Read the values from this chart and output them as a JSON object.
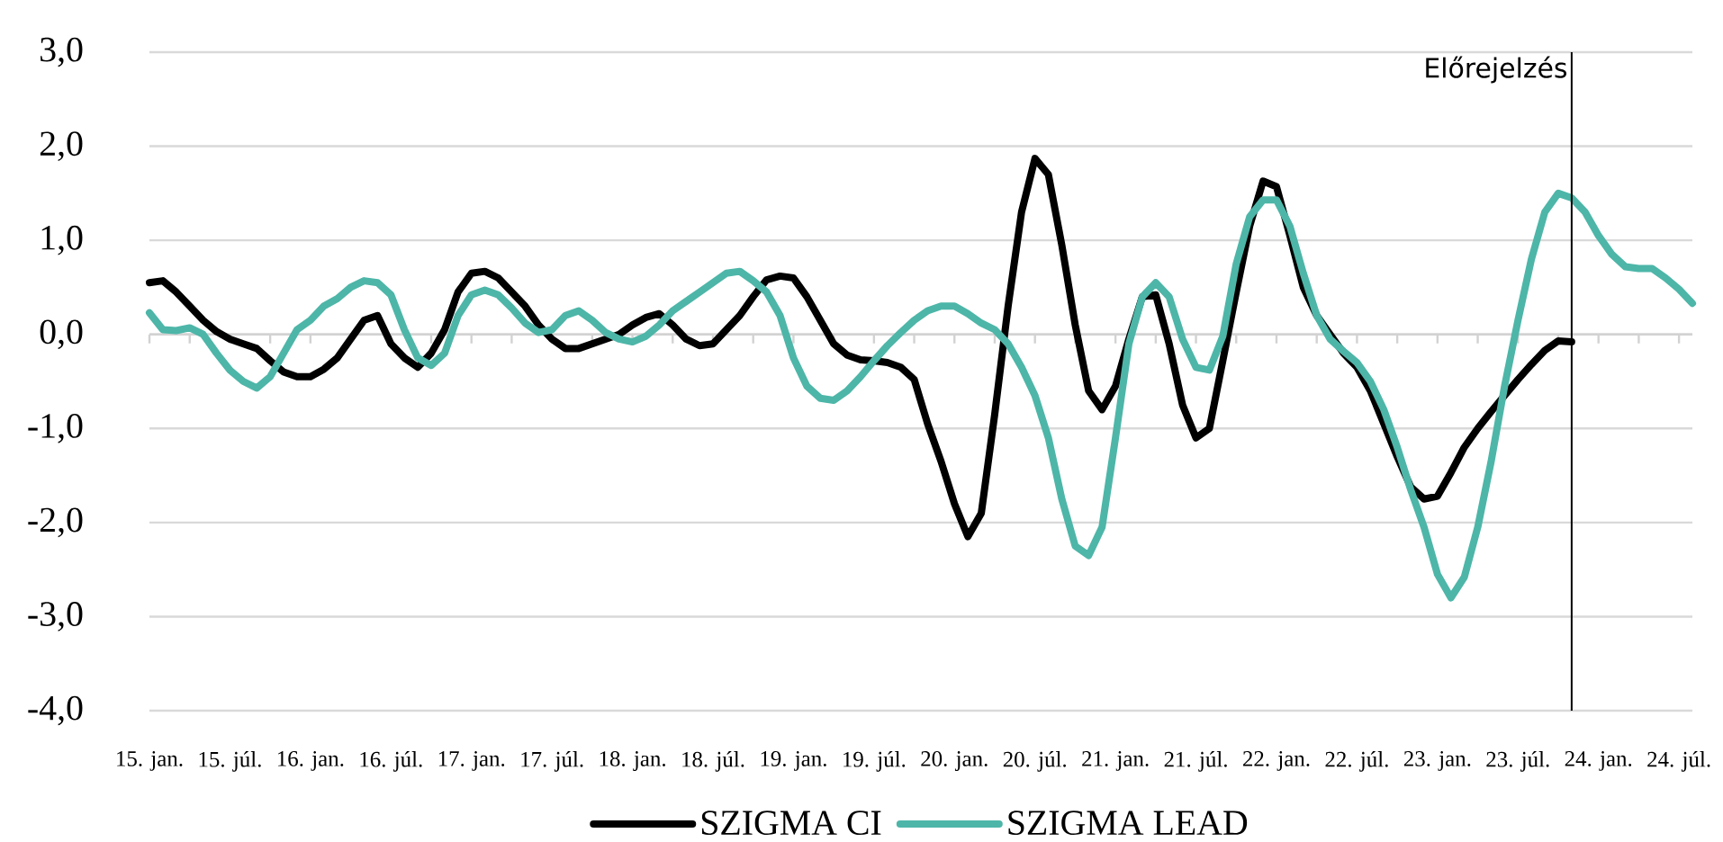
{
  "chart_data": {
    "type": "line",
    "x": [
      "2015-01",
      "2015-02",
      "2015-03",
      "2015-04",
      "2015-05",
      "2015-06",
      "2015-07",
      "2015-08",
      "2015-09",
      "2015-10",
      "2015-11",
      "2015-12",
      "2016-01",
      "2016-02",
      "2016-03",
      "2016-04",
      "2016-05",
      "2016-06",
      "2016-07",
      "2016-08",
      "2016-09",
      "2016-10",
      "2016-11",
      "2016-12",
      "2017-01",
      "2017-02",
      "2017-03",
      "2017-04",
      "2017-05",
      "2017-06",
      "2017-07",
      "2017-08",
      "2017-09",
      "2017-10",
      "2017-11",
      "2017-12",
      "2018-01",
      "2018-02",
      "2018-03",
      "2018-04",
      "2018-05",
      "2018-06",
      "2018-07",
      "2018-08",
      "2018-09",
      "2018-10",
      "2018-11",
      "2018-12",
      "2019-01",
      "2019-02",
      "2019-03",
      "2019-04",
      "2019-05",
      "2019-06",
      "2019-07",
      "2019-08",
      "2019-09",
      "2019-10",
      "2019-11",
      "2019-12",
      "2020-01",
      "2020-02",
      "2020-03",
      "2020-04",
      "2020-05",
      "2020-06",
      "2020-07",
      "2020-08",
      "2020-09",
      "2020-10",
      "2020-11",
      "2020-12",
      "2021-01",
      "2021-02",
      "2021-03",
      "2021-04",
      "2021-05",
      "2021-06",
      "2021-07",
      "2021-08",
      "2021-09",
      "2021-10",
      "2021-11",
      "2021-12",
      "2022-01",
      "2022-02",
      "2022-03",
      "2022-04",
      "2022-05",
      "2022-06",
      "2022-07",
      "2022-08",
      "2022-09",
      "2022-10",
      "2022-11",
      "2022-12",
      "2023-01",
      "2023-02",
      "2023-03",
      "2023-04",
      "2023-05",
      "2023-06",
      "2023-07",
      "2023-08",
      "2023-09",
      "2023-10",
      "2023-11",
      "2023-12",
      "2024-01",
      "2024-02",
      "2024-03",
      "2024-04",
      "2024-05",
      "2024-06",
      "2024-07",
      "2024-08"
    ],
    "series": [
      {
        "name": "SZIGMA CI",
        "color": "#000000",
        "values": [
          0.55,
          0.57,
          0.45,
          0.3,
          0.15,
          0.03,
          -0.05,
          -0.1,
          -0.15,
          -0.28,
          -0.4,
          -0.45,
          -0.45,
          -0.37,
          -0.25,
          -0.05,
          0.15,
          0.2,
          -0.1,
          -0.25,
          -0.35,
          -0.2,
          0.05,
          0.45,
          0.65,
          0.67,
          0.6,
          0.45,
          0.3,
          0.1,
          -0.05,
          -0.15,
          -0.15,
          -0.1,
          -0.05,
          0,
          0.1,
          0.18,
          0.22,
          0.1,
          -0.05,
          -0.12,
          -0.1,
          0.05,
          0.2,
          0.4,
          0.58,
          0.62,
          0.6,
          0.4,
          0.15,
          -0.1,
          -0.22,
          -0.27,
          -0.28,
          -0.3,
          -0.35,
          -0.48,
          -0.95,
          -1.35,
          -1.8,
          -2.15,
          -1.9,
          -0.85,
          0.3,
          1.3,
          1.87,
          1.7,
          0.95,
          0.1,
          -0.6,
          -0.8,
          -0.55,
          -0.05,
          0.4,
          0.42,
          -0.1,
          -0.75,
          -1.1,
          -1.0,
          -0.28,
          0.45,
          1.15,
          1.63,
          1.57,
          1.05,
          0.5,
          0.2,
          0,
          -0.2,
          -0.35,
          -0.6,
          -0.95,
          -1.3,
          -1.62,
          -1.75,
          -1.72,
          -1.47,
          -1.2,
          -1.0,
          -0.82,
          -0.65,
          -0.48,
          -0.32,
          -0.17,
          -0.07,
          -0.08,
          null,
          null,
          null,
          null,
          null,
          null,
          null,
          null,
          null
        ]
      },
      {
        "name": "SZIGMA LEAD",
        "color": "#4db6a8",
        "values": [
          0.23,
          0.05,
          0.04,
          0.07,
          0,
          -0.2,
          -0.38,
          -0.5,
          -0.57,
          -0.45,
          -0.2,
          0.05,
          0.15,
          0.3,
          0.38,
          0.5,
          0.57,
          0.55,
          0.42,
          0.05,
          -0.25,
          -0.33,
          -0.2,
          0.2,
          0.42,
          0.47,
          0.42,
          0.28,
          0.12,
          0.02,
          0.05,
          0.2,
          0.25,
          0.15,
          0.02,
          -0.05,
          -0.08,
          -0.02,
          0.1,
          0.25,
          0.35,
          0.45,
          0.55,
          0.65,
          0.67,
          0.57,
          0.45,
          0.2,
          -0.25,
          -0.55,
          -0.68,
          -0.7,
          -0.6,
          -0.45,
          -0.28,
          -0.12,
          0.02,
          0.15,
          0.25,
          0.3,
          0.3,
          0.22,
          0.12,
          0.05,
          -0.1,
          -0.35,
          -0.65,
          -1.1,
          -1.75,
          -2.25,
          -2.35,
          -2.05,
          -1.1,
          -0.1,
          0.4,
          0.55,
          0.4,
          -0.05,
          -0.35,
          -0.38,
          -0.02,
          0.75,
          1.25,
          1.43,
          1.43,
          1.15,
          0.65,
          0.2,
          -0.05,
          -0.18,
          -0.3,
          -0.5,
          -0.8,
          -1.2,
          -1.65,
          -2.05,
          -2.55,
          -2.8,
          -2.58,
          -2.05,
          -1.35,
          -0.55,
          0.15,
          0.8,
          1.3,
          1.5,
          1.45,
          1.3,
          1.05,
          0.85,
          0.72,
          0.7,
          0.7,
          0.6,
          0.48,
          0.33
        ]
      }
    ],
    "xlim": [
      "2015-01",
      "2024-08"
    ],
    "xticks": [
      {
        "value": "2015-01",
        "label": "15. jan."
      },
      {
        "value": "2015-04",
        "label": null
      },
      {
        "value": "2015-07",
        "label": "15. júl."
      },
      {
        "value": "2015-10",
        "label": null
      },
      {
        "value": "2016-01",
        "label": "16. jan."
      },
      {
        "value": "2016-04",
        "label": null
      },
      {
        "value": "2016-07",
        "label": "16. júl."
      },
      {
        "value": "2016-10",
        "label": null
      },
      {
        "value": "2017-01",
        "label": "17. jan."
      },
      {
        "value": "2017-04",
        "label": null
      },
      {
        "value": "2017-07",
        "label": "17. júl."
      },
      {
        "value": "2017-10",
        "label": null
      },
      {
        "value": "2018-01",
        "label": "18. jan."
      },
      {
        "value": "2018-04",
        "label": null
      },
      {
        "value": "2018-07",
        "label": "18. júl."
      },
      {
        "value": "2018-10",
        "label": null
      },
      {
        "value": "2019-01",
        "label": "19. jan."
      },
      {
        "value": "2019-04",
        "label": null
      },
      {
        "value": "2019-07",
        "label": "19. júl."
      },
      {
        "value": "2019-10",
        "label": null
      },
      {
        "value": "2020-01",
        "label": "20. jan."
      },
      {
        "value": "2020-04",
        "label": null
      },
      {
        "value": "2020-07",
        "label": "20. júl."
      },
      {
        "value": "2020-10",
        "label": null
      },
      {
        "value": "2021-01",
        "label": "21. jan."
      },
      {
        "value": "2021-04",
        "label": null
      },
      {
        "value": "2021-07",
        "label": "21. júl."
      },
      {
        "value": "2021-10",
        "label": null
      },
      {
        "value": "2022-01",
        "label": "22. jan."
      },
      {
        "value": "2022-04",
        "label": null
      },
      {
        "value": "2022-07",
        "label": "22. júl."
      },
      {
        "value": "2022-10",
        "label": null
      },
      {
        "value": "2023-01",
        "label": "23. jan."
      },
      {
        "value": "2023-04",
        "label": null
      },
      {
        "value": "2023-07",
        "label": "23. júl."
      },
      {
        "value": "2023-10",
        "label": null
      },
      {
        "value": "2024-01",
        "label": "24. jan."
      },
      {
        "value": "2024-04",
        "label": null
      },
      {
        "value": "2024-07",
        "label": "24. júl."
      }
    ],
    "ylim": [
      -4,
      3
    ],
    "yticks": [
      {
        "value": -4,
        "label": "-4,0"
      },
      {
        "value": -3,
        "label": "-3,0"
      },
      {
        "value": -2,
        "label": "-2,0"
      },
      {
        "value": -1,
        "label": "-1,0"
      },
      {
        "value": 0,
        "label": "0,0"
      },
      {
        "value": 1,
        "label": "1,0"
      },
      {
        "value": 2,
        "label": "2,0"
      },
      {
        "value": 3,
        "label": "3,0"
      }
    ],
    "ref_lines": [
      {
        "axis": "x",
        "value": "2023-11",
        "label": "Előrejelzés",
        "color": "#000000"
      }
    ],
    "grid": "y",
    "legend": "bottom"
  }
}
